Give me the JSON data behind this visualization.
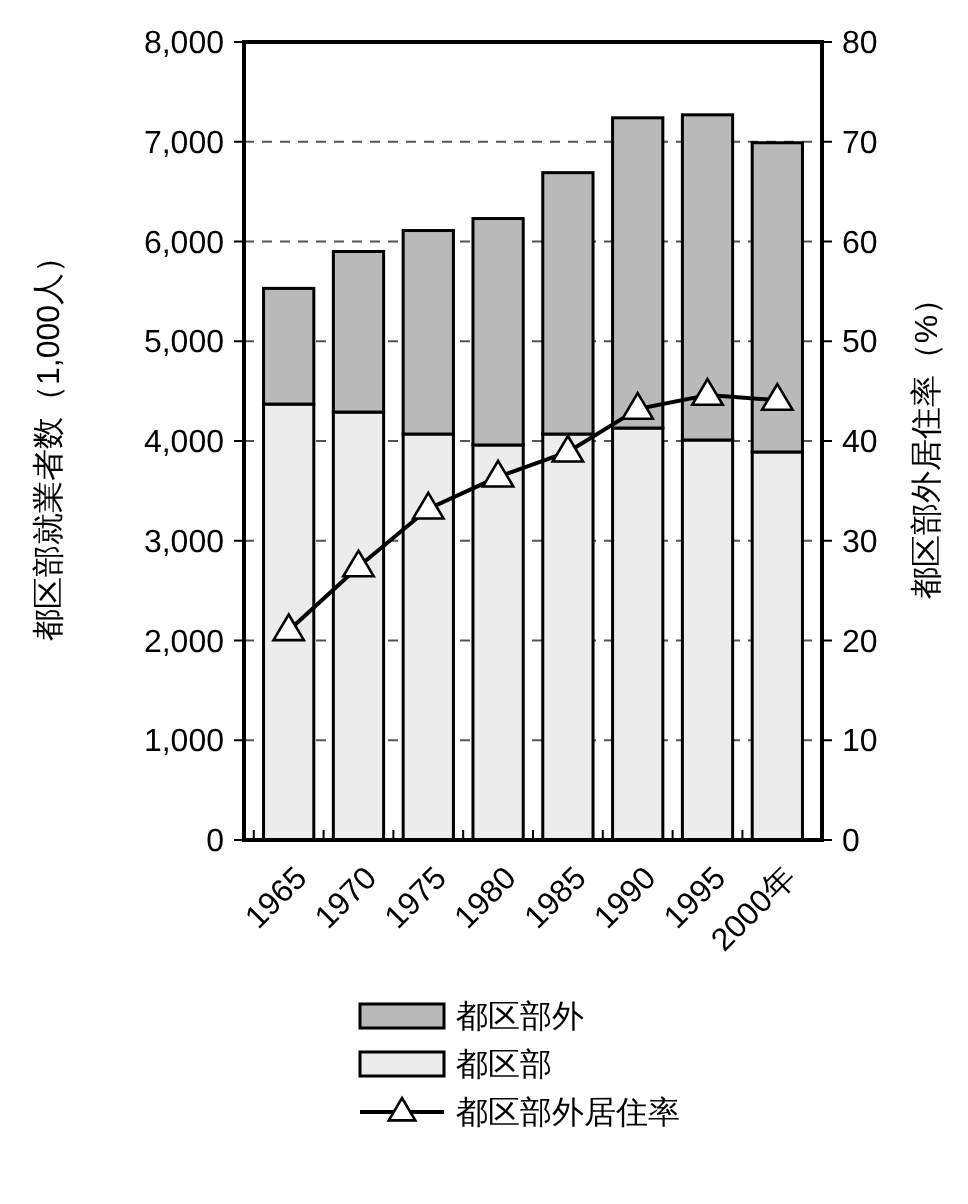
{
  "chart_data": {
    "type": "bar",
    "stacked": true,
    "categories": [
      "1965",
      "1970",
      "1975",
      "1980",
      "1985",
      "1990",
      "1995",
      "2000年"
    ],
    "series": [
      {
        "name": "都区部",
        "color": "#ececec",
        "values": [
          4370,
          4290,
          4070,
          3960,
          4070,
          4130,
          4010,
          3890
        ]
      },
      {
        "name": "都区部外",
        "color": "#b9b9b9",
        "values": [
          1160,
          1610,
          2040,
          2270,
          2620,
          3110,
          3260,
          3100
        ]
      },
      {
        "name": "都区部外居住率",
        "type": "line",
        "axis": "y2",
        "color": "#000000",
        "marker": "triangle",
        "values": [
          21.0,
          27.4,
          33.2,
          36.4,
          38.9,
          43.2,
          44.6,
          44.1
        ]
      }
    ],
    "ylabel": "都区部就業者数（1,000人）",
    "y2label": "都区部外居住率（%）",
    "ylim": [
      0,
      8000
    ],
    "yticks": [
      0,
      {
        "value": 1000,
        "label": "1,000"
      },
      {
        "value": 2000,
        "label": "2,000"
      },
      {
        "value": 3000,
        "label": "3,000"
      },
      {
        "value": 4000,
        "label": "4,000"
      },
      {
        "value": 5000,
        "label": "5,000"
      },
      {
        "value": 6000,
        "label": "6,000"
      },
      {
        "value": 7000,
        "label": "7,000"
      },
      {
        "value": 8000,
        "label": "8,000"
      }
    ],
    "y2lim": [
      0,
      80
    ],
    "y2ticks": [
      0,
      10,
      20,
      30,
      40,
      50,
      60,
      70,
      80
    ],
    "grid": "y",
    "legend": "bottom"
  }
}
